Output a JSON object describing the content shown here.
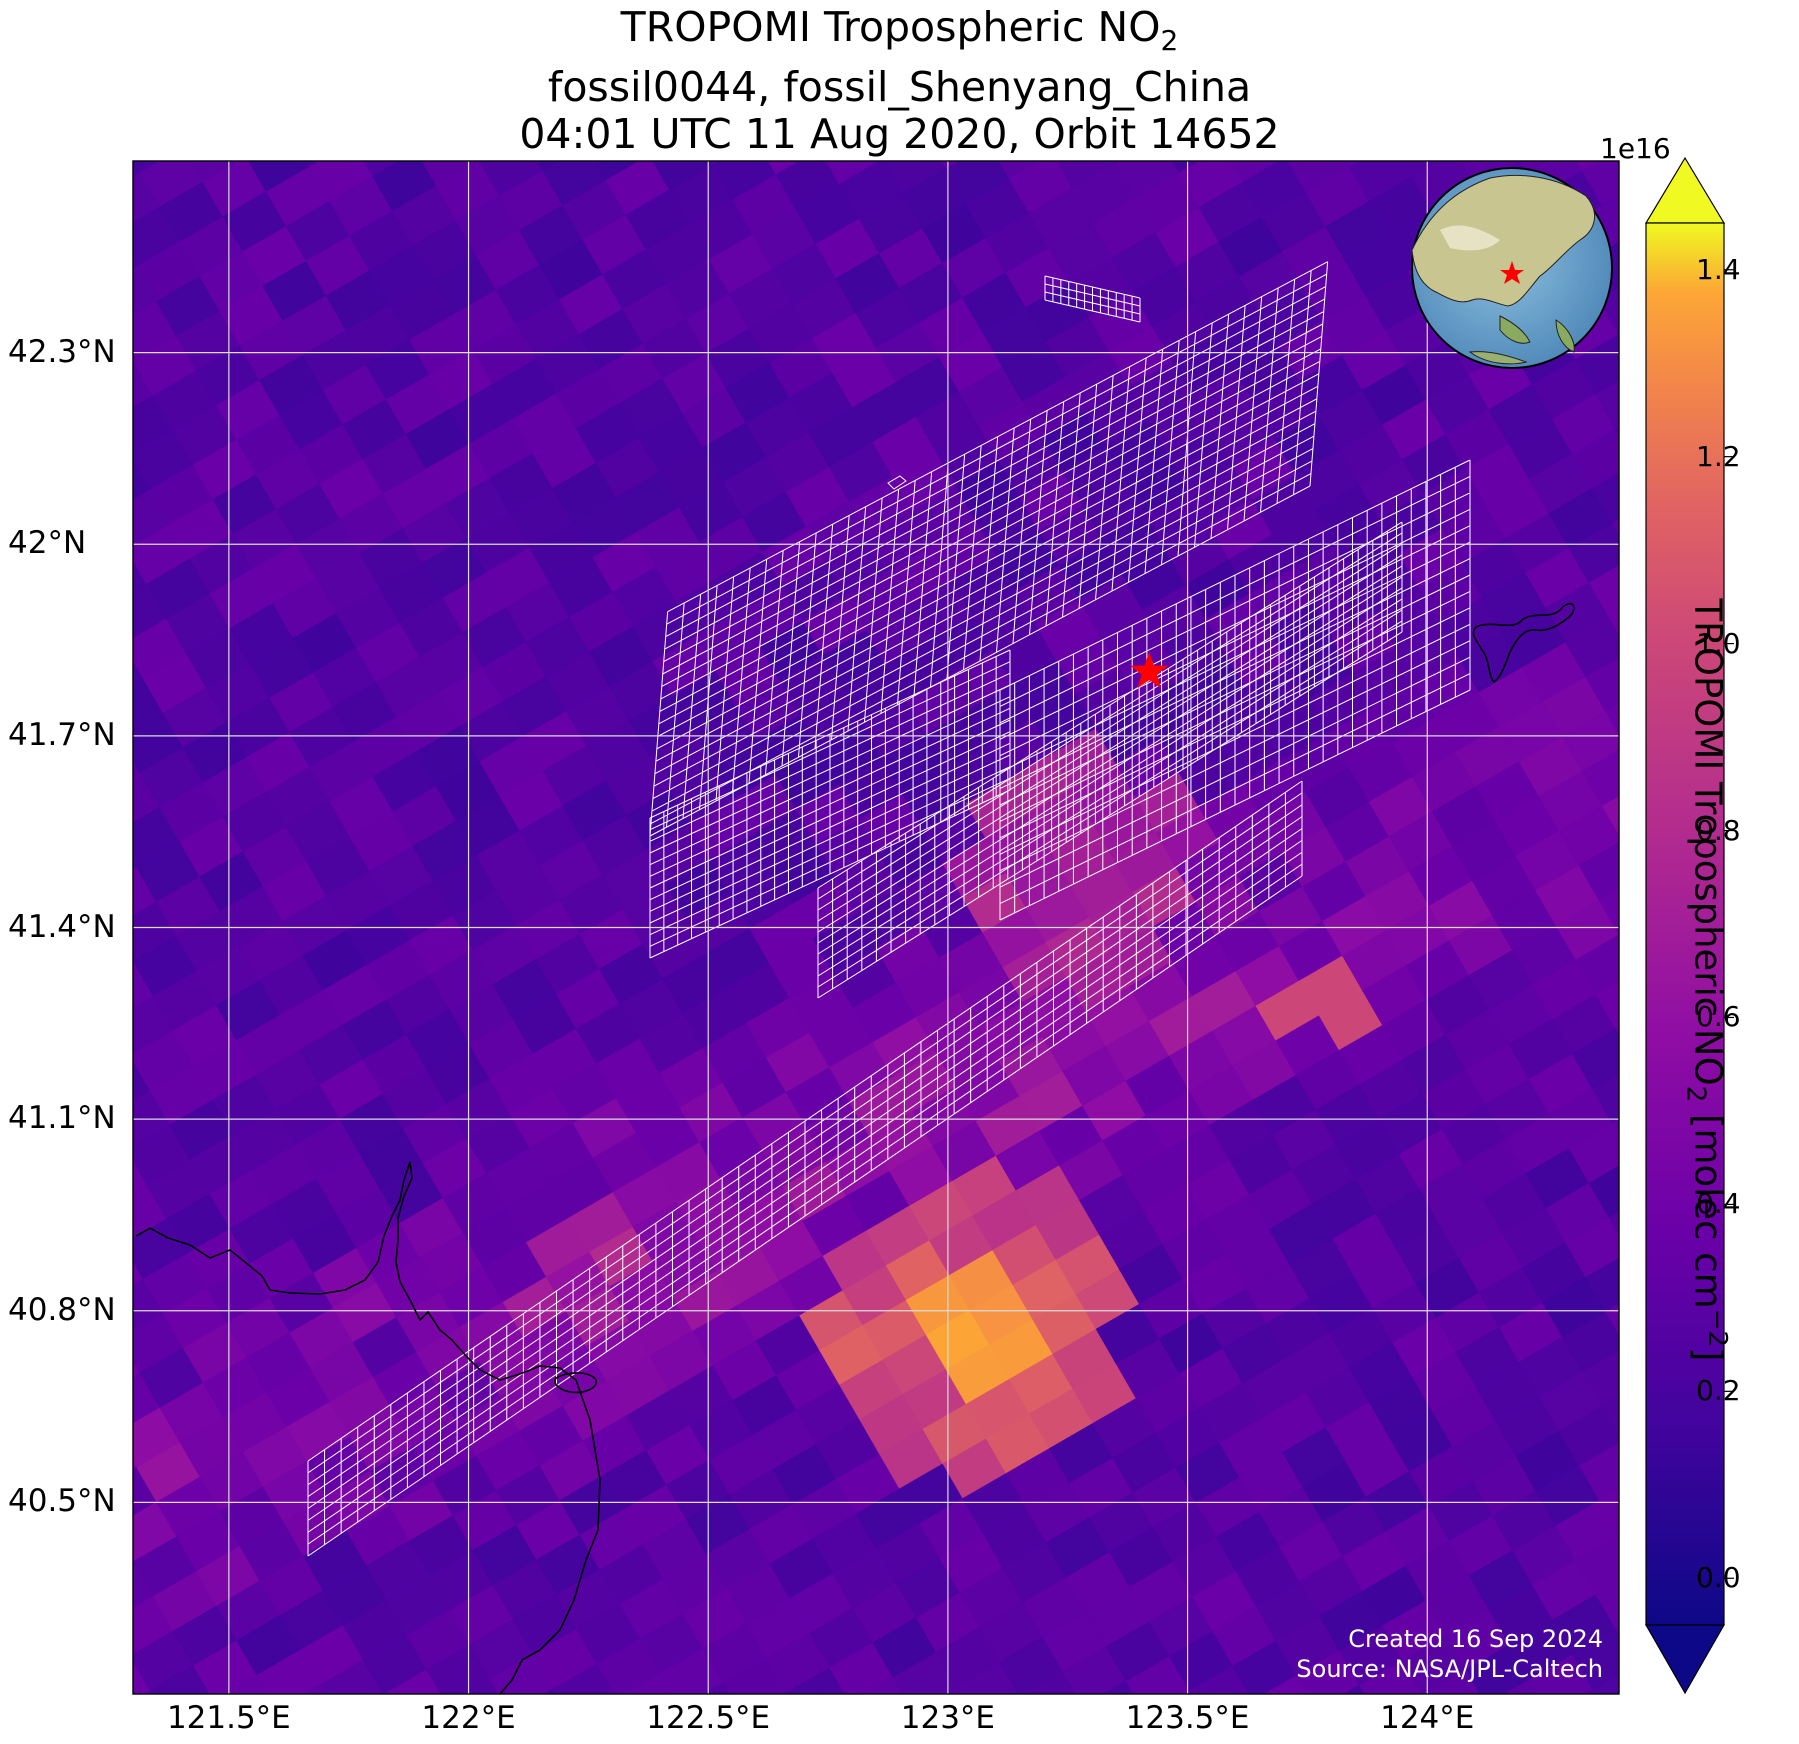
{
  "title": {
    "line1_pre": "TROPOMI Tropospheric NO",
    "line1_sub": "2",
    "line2": "fossil0044, fossil_Shenyang_China",
    "line3": "04:01 UTC 11 Aug 2020, Orbit 14652"
  },
  "axes": {
    "lat_ticks": [
      "42.3°N",
      "42°N",
      "41.7°N",
      "41.4°N",
      "41.1°N",
      "40.8°N",
      "40.5°N"
    ],
    "lat_values": [
      42.3,
      42.0,
      41.7,
      41.4,
      41.1,
      40.8,
      40.5
    ],
    "lon_ticks": [
      "121.5°E",
      "122°E",
      "122.5°E",
      "123°E",
      "123.5°E",
      "124°E"
    ],
    "lon_values": [
      121.5,
      122.0,
      122.5,
      123.0,
      123.5,
      124.0
    ],
    "lon_range": [
      121.3,
      124.4
    ],
    "lat_range": [
      40.2,
      42.6
    ],
    "grid": true
  },
  "colorbar": {
    "title_pre": "TROPOMI Tropospheric NO",
    "title_sub": "2",
    "title_post": " [molec cm",
    "title_sup": "−2",
    "title_end": "]",
    "exponent": "1e16",
    "ticks": [
      "0.0",
      "0.2",
      "0.4",
      "0.6",
      "0.8",
      "1.0",
      "1.2",
      "1.4"
    ],
    "tick_values": [
      0.0,
      0.2,
      0.4,
      0.6,
      0.8,
      1.0,
      1.2,
      1.4
    ],
    "range": [
      -0.05,
      1.45
    ],
    "colormap": "plasma",
    "extend": "both"
  },
  "site": {
    "name": "fossil_Shenyang_China",
    "lon": 123.42,
    "lat": 41.8,
    "marker": "star-icon",
    "color": "#ff0000"
  },
  "inset_globe": {
    "label": "globe-inset",
    "center_marker_color": "#ff0000"
  },
  "credits": {
    "created": "Created 16 Sep 2024",
    "source": "Source: NASA/JPL-Caltech"
  },
  "colors": {
    "grid": "#dcdcdc",
    "background_low": "#3a0ea0",
    "hotspot": "#f0f020",
    "footprint_outline": "#ffffff"
  }
}
